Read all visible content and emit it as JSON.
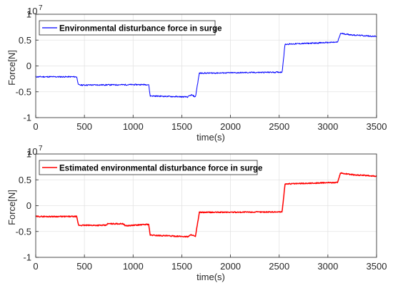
{
  "chart_data": [
    {
      "type": "line",
      "xlabel": "time(s)",
      "ylabel": "Force[N]",
      "exponent_base": "10",
      "exponent_power": "7",
      "xlim": [
        0,
        3500
      ],
      "ylim": [
        -1,
        1
      ],
      "xticks": [
        "0",
        "500",
        "1000",
        "1500",
        "2000",
        "2500",
        "3000",
        "3500"
      ],
      "yticks": [
        "-1",
        "-0.5",
        "0",
        "0.5",
        "1"
      ],
      "grid": true,
      "legend_position": "top-left",
      "series": [
        {
          "name": "Environmental disturbance force in surge",
          "color": "#0000ff",
          "noise_amplitude": 0.012,
          "points": [
            [
              0,
              -0.21
            ],
            [
              420,
              -0.21
            ],
            [
              440,
              -0.37
            ],
            [
              1160,
              -0.36
            ],
            [
              1175,
              -0.58
            ],
            [
              1560,
              -0.6
            ],
            [
              1600,
              -0.56
            ],
            [
              1640,
              -0.6
            ],
            [
              1680,
              -0.14
            ],
            [
              2530,
              -0.12
            ],
            [
              2560,
              0.42
            ],
            [
              3100,
              0.46
            ],
            [
              3130,
              0.63
            ],
            [
              3250,
              0.6
            ],
            [
              3500,
              0.57
            ]
          ]
        }
      ]
    },
    {
      "type": "line",
      "xlabel": "time(s)",
      "ylabel": "Force[N]",
      "exponent_base": "10",
      "exponent_power": "7",
      "xlim": [
        0,
        3500
      ],
      "ylim": [
        -1,
        1
      ],
      "xticks": [
        "0",
        "500",
        "1000",
        "1500",
        "2000",
        "2500",
        "3000",
        "3500"
      ],
      "yticks": [
        "-1",
        "-0.5",
        "0",
        "0.5",
        "1"
      ],
      "grid": true,
      "legend_position": "top-left",
      "series": [
        {
          "name": "Estimated environmental disturbance force in surge",
          "color": "#ff0000",
          "noise_amplitude": 0.01,
          "points": [
            [
              0,
              -0.21
            ],
            [
              420,
              -0.21
            ],
            [
              440,
              -0.38
            ],
            [
              720,
              -0.38
            ],
            [
              740,
              -0.35
            ],
            [
              900,
              -0.35
            ],
            [
              920,
              -0.39
            ],
            [
              1160,
              -0.36
            ],
            [
              1175,
              -0.57
            ],
            [
              1560,
              -0.6
            ],
            [
              1600,
              -0.56
            ],
            [
              1640,
              -0.6
            ],
            [
              1680,
              -0.13
            ],
            [
              2530,
              -0.12
            ],
            [
              2560,
              0.42
            ],
            [
              3100,
              0.45
            ],
            [
              3130,
              0.63
            ],
            [
              3250,
              0.6
            ],
            [
              3500,
              0.57
            ]
          ]
        }
      ]
    }
  ]
}
